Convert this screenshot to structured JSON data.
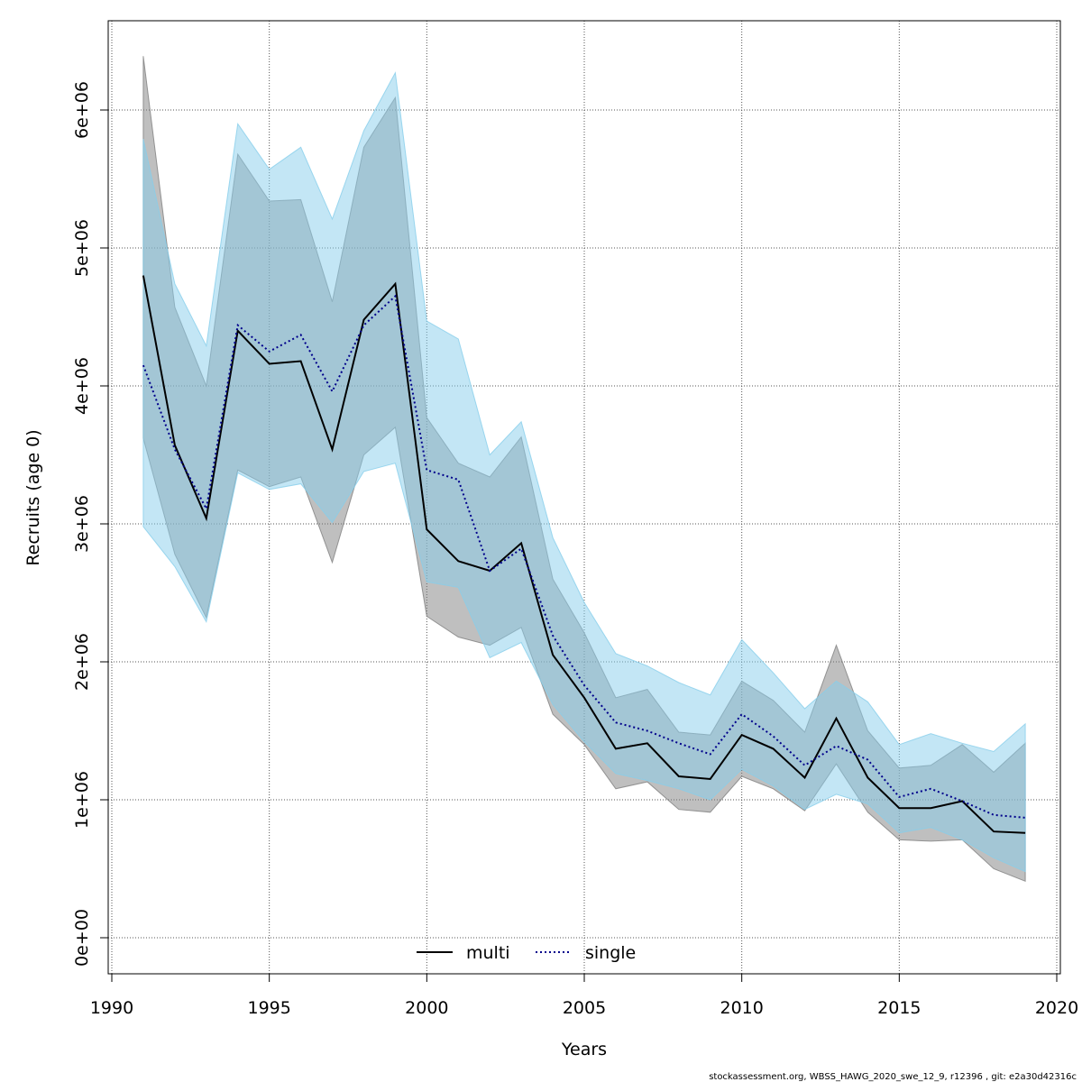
{
  "chart_data": {
    "type": "area",
    "xlabel": "Years",
    "ylabel": "Recruits (age 0)",
    "xlim": [
      1990,
      2020
    ],
    "ylim": [
      0,
      6000000
    ],
    "x_ticks": [
      1990,
      1995,
      2000,
      2005,
      2010,
      2015,
      2020
    ],
    "x_tick_labels": [
      "1990",
      "1995",
      "2000",
      "2005",
      "2010",
      "2015",
      "2020"
    ],
    "y_ticks": [
      0,
      1000000,
      2000000,
      3000000,
      4000000,
      5000000,
      6000000
    ],
    "y_tick_labels": [
      "0e+00",
      "1e+06",
      "2e+06",
      "3e+06",
      "4e+06",
      "5e+06",
      "6e+06"
    ],
    "grid": true,
    "legend": {
      "placement": "bottom-center"
    },
    "x": [
      1991,
      1992,
      1993,
      1994,
      1995,
      1996,
      1997,
      1998,
      1999,
      2000,
      2001,
      2002,
      2003,
      2004,
      2005,
      2006,
      2007,
      2008,
      2009,
      2010,
      2011,
      2012,
      2013,
      2014,
      2015,
      2016,
      2017,
      2018,
      2019
    ],
    "series": [
      {
        "name": "multi",
        "line_style": "solid",
        "line_color": "#000000",
        "band_color": "#808080",
        "values": [
          4800000,
          3570000,
          3040000,
          4400000,
          4160000,
          4180000,
          3540000,
          4480000,
          4740000,
          2960000,
          2730000,
          2660000,
          2860000,
          2050000,
          1740000,
          1370000,
          1410000,
          1170000,
          1150000,
          1470000,
          1370000,
          1160000,
          1590000,
          1160000,
          940000,
          940000,
          990000,
          770000,
          760000
        ],
        "lower": [
          3620000,
          2780000,
          2320000,
          3390000,
          3270000,
          3340000,
          2720000,
          3500000,
          3700000,
          2330000,
          2180000,
          2120000,
          2250000,
          1620000,
          1400000,
          1080000,
          1130000,
          930000,
          910000,
          1170000,
          1080000,
          920000,
          1260000,
          910000,
          710000,
          700000,
          710000,
          500000,
          410000
        ],
        "upper": [
          6390000,
          4570000,
          4000000,
          5680000,
          5340000,
          5350000,
          4610000,
          5730000,
          6090000,
          3770000,
          3440000,
          3340000,
          3630000,
          2600000,
          2210000,
          1740000,
          1800000,
          1490000,
          1470000,
          1860000,
          1720000,
          1490000,
          2120000,
          1500000,
          1230000,
          1250000,
          1400000,
          1200000,
          1410000
        ]
      },
      {
        "name": "single",
        "line_style": "dotted",
        "line_color": "#00008b",
        "band_color": "#87ceeb",
        "values": [
          4150000,
          3540000,
          3110000,
          4440000,
          4250000,
          4370000,
          3960000,
          4440000,
          4650000,
          3390000,
          3320000,
          2660000,
          2820000,
          2190000,
          1830000,
          1560000,
          1500000,
          1410000,
          1330000,
          1620000,
          1460000,
          1250000,
          1390000,
          1290000,
          1020000,
          1080000,
          990000,
          890000,
          870000
        ],
        "lower": [
          2980000,
          2690000,
          2290000,
          3370000,
          3250000,
          3290000,
          3010000,
          3380000,
          3440000,
          2580000,
          2540000,
          2030000,
          2140000,
          1690000,
          1420000,
          1190000,
          1140000,
          1080000,
          1000000,
          1220000,
          1100000,
          930000,
          1040000,
          970000,
          760000,
          800000,
          710000,
          580000,
          480000
        ],
        "upper": [
          5790000,
          4740000,
          4290000,
          5900000,
          5570000,
          5730000,
          5210000,
          5850000,
          6270000,
          4470000,
          4340000,
          3500000,
          3740000,
          2900000,
          2430000,
          2060000,
          1970000,
          1850000,
          1760000,
          2160000,
          1920000,
          1660000,
          1860000,
          1710000,
          1400000,
          1480000,
          1410000,
          1350000,
          1550000
        ]
      }
    ]
  },
  "footer": "stockassessment.org, WBSS_HAWG_2020_swe_12_9, r12396 , git: e2a30d42316c"
}
